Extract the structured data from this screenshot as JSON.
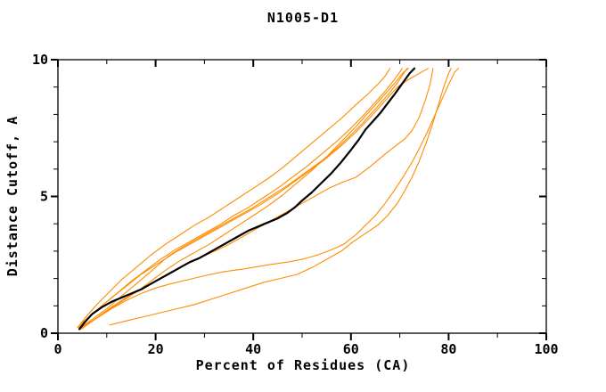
{
  "chart_data": {
    "type": "line",
    "title": "N1005-D1",
    "xlabel": "Percent of Residues (CA)",
    "ylabel": "Distance Cutoff, A",
    "xlim": [
      0,
      100
    ],
    "ylim": [
      0,
      10
    ],
    "x_major_ticks": [
      0,
      20,
      40,
      60,
      80,
      100
    ],
    "x_minor_ticks": [
      10,
      30,
      50,
      70,
      90
    ],
    "y_major_ticks": [
      0,
      5,
      10
    ],
    "y_minor_ticks": [
      1,
      2,
      3,
      4,
      6,
      7,
      8,
      9
    ],
    "grid": false,
    "legend_position": "none",
    "frame_color": "#000000",
    "series": [
      {
        "name": "model-black",
        "color": "#000000",
        "width": 2.2,
        "points": [
          [
            4.4,
            0.15
          ],
          [
            5.5,
            0.4
          ],
          [
            7,
            0.7
          ],
          [
            9,
            0.95
          ],
          [
            11,
            1.15
          ],
          [
            13,
            1.3
          ],
          [
            15,
            1.45
          ],
          [
            17,
            1.6
          ],
          [
            19,
            1.8
          ],
          [
            21,
            2.0
          ],
          [
            23,
            2.2
          ],
          [
            25,
            2.4
          ],
          [
            27,
            2.6
          ],
          [
            29,
            2.75
          ],
          [
            31,
            2.95
          ],
          [
            33,
            3.15
          ],
          [
            35,
            3.35
          ],
          [
            37,
            3.55
          ],
          [
            39,
            3.75
          ],
          [
            41,
            3.9
          ],
          [
            43,
            4.05
          ],
          [
            45,
            4.2
          ],
          [
            47,
            4.4
          ],
          [
            48.5,
            4.6
          ],
          [
            50,
            4.85
          ],
          [
            52,
            5.15
          ],
          [
            54,
            5.5
          ],
          [
            56,
            5.85
          ],
          [
            58,
            6.25
          ],
          [
            60,
            6.7
          ],
          [
            61.5,
            7.05
          ],
          [
            63,
            7.45
          ],
          [
            64.5,
            7.75
          ],
          [
            66,
            8.05
          ],
          [
            67.5,
            8.4
          ],
          [
            69,
            8.75
          ],
          [
            70,
            9.0
          ],
          [
            71,
            9.25
          ],
          [
            72,
            9.5
          ],
          [
            73,
            9.68
          ]
        ]
      },
      {
        "name": "reference-1",
        "color": "#ff8c00",
        "width": 1.1,
        "points": [
          [
            4.0,
            0.2
          ],
          [
            6,
            0.65
          ],
          [
            8,
            1.05
          ],
          [
            10.5,
            1.5
          ],
          [
            13,
            1.95
          ],
          [
            16,
            2.4
          ],
          [
            19,
            2.85
          ],
          [
            22,
            3.25
          ],
          [
            25,
            3.6
          ],
          [
            28,
            3.95
          ],
          [
            31,
            4.25
          ],
          [
            34,
            4.6
          ],
          [
            37,
            4.95
          ],
          [
            40,
            5.3
          ],
          [
            43,
            5.65
          ],
          [
            46,
            6.05
          ],
          [
            49,
            6.5
          ],
          [
            52,
            6.95
          ],
          [
            55,
            7.4
          ],
          [
            58,
            7.85
          ],
          [
            61,
            8.35
          ],
          [
            63.5,
            8.75
          ],
          [
            65.5,
            9.1
          ],
          [
            67,
            9.4
          ],
          [
            68,
            9.68
          ]
        ]
      },
      {
        "name": "reference-2",
        "color": "#ff8c00",
        "width": 1.1,
        "points": [
          [
            4.3,
            0.2
          ],
          [
            6.5,
            0.6
          ],
          [
            9,
            1.0
          ],
          [
            12,
            1.45
          ],
          [
            15,
            1.9
          ],
          [
            18,
            2.3
          ],
          [
            21,
            2.7
          ],
          [
            24,
            3.05
          ],
          [
            27,
            3.35
          ],
          [
            30,
            3.65
          ],
          [
            33,
            3.95
          ],
          [
            36,
            4.3
          ],
          [
            39,
            4.6
          ],
          [
            42,
            4.95
          ],
          [
            45,
            5.3
          ],
          [
            48,
            5.7
          ],
          [
            51,
            6.1
          ],
          [
            54,
            6.55
          ],
          [
            57,
            7.0
          ],
          [
            60,
            7.5
          ],
          [
            62.5,
            7.95
          ],
          [
            65,
            8.45
          ],
          [
            67,
            8.85
          ],
          [
            68.8,
            9.25
          ],
          [
            70,
            9.55
          ],
          [
            70.5,
            9.68
          ]
        ]
      },
      {
        "name": "reference-3",
        "color": "#ff8c00",
        "width": 1.1,
        "points": [
          [
            4.6,
            0.2
          ],
          [
            7,
            0.5
          ],
          [
            10,
            0.9
          ],
          [
            13,
            1.35
          ],
          [
            16,
            1.8
          ],
          [
            19,
            2.25
          ],
          [
            22.5,
            2.8
          ],
          [
            26,
            3.2
          ],
          [
            29.5,
            3.55
          ],
          [
            33,
            3.9
          ],
          [
            36.5,
            4.25
          ],
          [
            40,
            4.6
          ],
          [
            43.5,
            5.0
          ],
          [
            47,
            5.4
          ],
          [
            50.5,
            5.85
          ],
          [
            54,
            6.3
          ],
          [
            57,
            6.75
          ],
          [
            60,
            7.25
          ],
          [
            62.5,
            7.7
          ],
          [
            65,
            8.2
          ],
          [
            67.5,
            8.7
          ],
          [
            69.5,
            9.15
          ],
          [
            71,
            9.55
          ],
          [
            71.5,
            9.68
          ]
        ]
      },
      {
        "name": "reference-4",
        "color": "#ff8c00",
        "width": 1.1,
        "points": [
          [
            4.5,
            0.2
          ],
          [
            7,
            0.45
          ],
          [
            10,
            0.8
          ],
          [
            13,
            1.15
          ],
          [
            16,
            1.5
          ],
          [
            19,
            1.9
          ],
          [
            22,
            2.3
          ],
          [
            25,
            2.65
          ],
          [
            28,
            2.95
          ],
          [
            31,
            3.25
          ],
          [
            34,
            3.6
          ],
          [
            37,
            3.95
          ],
          [
            40,
            4.3
          ],
          [
            43,
            4.65
          ],
          [
            46,
            5.05
          ],
          [
            49,
            5.5
          ],
          [
            52,
            5.95
          ],
          [
            55,
            6.45
          ],
          [
            58,
            7.0
          ],
          [
            61,
            7.55
          ],
          [
            63,
            7.95
          ],
          [
            65,
            8.35
          ],
          [
            67,
            8.75
          ],
          [
            69,
            9.15
          ],
          [
            70.8,
            9.55
          ],
          [
            71.8,
            9.68
          ]
        ]
      },
      {
        "name": "reference-5",
        "color": "#ff8c00",
        "width": 1.1,
        "points": [
          [
            4.2,
            0.25
          ],
          [
            7,
            0.7
          ],
          [
            10,
            1.15
          ],
          [
            13.5,
            1.65
          ],
          [
            17,
            2.15
          ],
          [
            20.5,
            2.55
          ],
          [
            24,
            2.95
          ],
          [
            27.5,
            3.3
          ],
          [
            31,
            3.65
          ],
          [
            34.5,
            4.0
          ],
          [
            38,
            4.35
          ],
          [
            41.5,
            4.7
          ],
          [
            45,
            5.1
          ],
          [
            48.5,
            5.55
          ],
          [
            52,
            6.0
          ],
          [
            55,
            6.4
          ],
          [
            58,
            6.85
          ],
          [
            61,
            7.35
          ],
          [
            64,
            7.9
          ],
          [
            67,
            8.5
          ],
          [
            69.5,
            9.0
          ],
          [
            72,
            9.3
          ],
          [
            74.5,
            9.55
          ],
          [
            75.8,
            9.68
          ]
        ]
      },
      {
        "name": "reference-6",
        "color": "#ff8c00",
        "width": 1.1,
        "points": [
          [
            4.8,
            0.15
          ],
          [
            7.5,
            0.5
          ],
          [
            10.5,
            0.9
          ],
          [
            13.5,
            1.25
          ],
          [
            16.5,
            1.55
          ],
          [
            19.5,
            1.85
          ],
          [
            22.5,
            2.15
          ],
          [
            25.5,
            2.45
          ],
          [
            28.5,
            2.7
          ],
          [
            31.5,
            2.95
          ],
          [
            34.5,
            3.2
          ],
          [
            37.5,
            3.5
          ],
          [
            40.5,
            3.8
          ],
          [
            43.5,
            4.1
          ],
          [
            46.5,
            4.4
          ],
          [
            49.5,
            4.7
          ],
          [
            52.5,
            5.0
          ],
          [
            55.5,
            5.3
          ],
          [
            58,
            5.5
          ],
          [
            61,
            5.7
          ],
          [
            64,
            6.1
          ],
          [
            67,
            6.55
          ],
          [
            69.5,
            6.9
          ],
          [
            71,
            7.1
          ],
          [
            72.5,
            7.4
          ],
          [
            74,
            7.9
          ],
          [
            75.2,
            8.5
          ],
          [
            76.2,
            9.1
          ],
          [
            76.8,
            9.68
          ]
        ]
      },
      {
        "name": "reference-7",
        "color": "#ff8c00",
        "width": 1.1,
        "points": [
          [
            5.0,
            0.2
          ],
          [
            8,
            0.55
          ],
          [
            11,
            0.9
          ],
          [
            14,
            1.2
          ],
          [
            17,
            1.45
          ],
          [
            20,
            1.65
          ],
          [
            23,
            1.8
          ],
          [
            26.5,
            1.95
          ],
          [
            30,
            2.1
          ],
          [
            34,
            2.25
          ],
          [
            38,
            2.35
          ],
          [
            43,
            2.5
          ],
          [
            47,
            2.6
          ],
          [
            50,
            2.7
          ],
          [
            53,
            2.85
          ],
          [
            56,
            3.05
          ],
          [
            58.5,
            3.25
          ],
          [
            61,
            3.6
          ],
          [
            63,
            3.95
          ],
          [
            65,
            4.3
          ],
          [
            67,
            4.75
          ],
          [
            69,
            5.25
          ],
          [
            71,
            5.8
          ],
          [
            72.5,
            6.25
          ],
          [
            74,
            6.75
          ],
          [
            75.5,
            7.3
          ],
          [
            77,
            7.9
          ],
          [
            78.5,
            8.5
          ],
          [
            80,
            9.1
          ],
          [
            81.3,
            9.55
          ],
          [
            82,
            9.68
          ]
        ]
      },
      {
        "name": "reference-8-outlier",
        "color": "#ff8c00",
        "width": 1.1,
        "points": [
          [
            10.6,
            0.3
          ],
          [
            14,
            0.45
          ],
          [
            17.5,
            0.6
          ],
          [
            21,
            0.75
          ],
          [
            24.5,
            0.9
          ],
          [
            28,
            1.05
          ],
          [
            31.5,
            1.25
          ],
          [
            35,
            1.45
          ],
          [
            38.5,
            1.65
          ],
          [
            42,
            1.85
          ],
          [
            45.5,
            2.0
          ],
          [
            49,
            2.15
          ],
          [
            52,
            2.4
          ],
          [
            55,
            2.7
          ],
          [
            58,
            3.0
          ],
          [
            60.5,
            3.35
          ],
          [
            63,
            3.65
          ],
          [
            65.5,
            3.95
          ],
          [
            67.5,
            4.3
          ],
          [
            69.5,
            4.75
          ],
          [
            71,
            5.2
          ],
          [
            72.5,
            5.7
          ],
          [
            74,
            6.3
          ],
          [
            75.5,
            7.0
          ],
          [
            76.8,
            7.7
          ],
          [
            78,
            8.4
          ],
          [
            79,
            9.0
          ],
          [
            80,
            9.5
          ],
          [
            80.5,
            9.68
          ]
        ]
      }
    ]
  }
}
